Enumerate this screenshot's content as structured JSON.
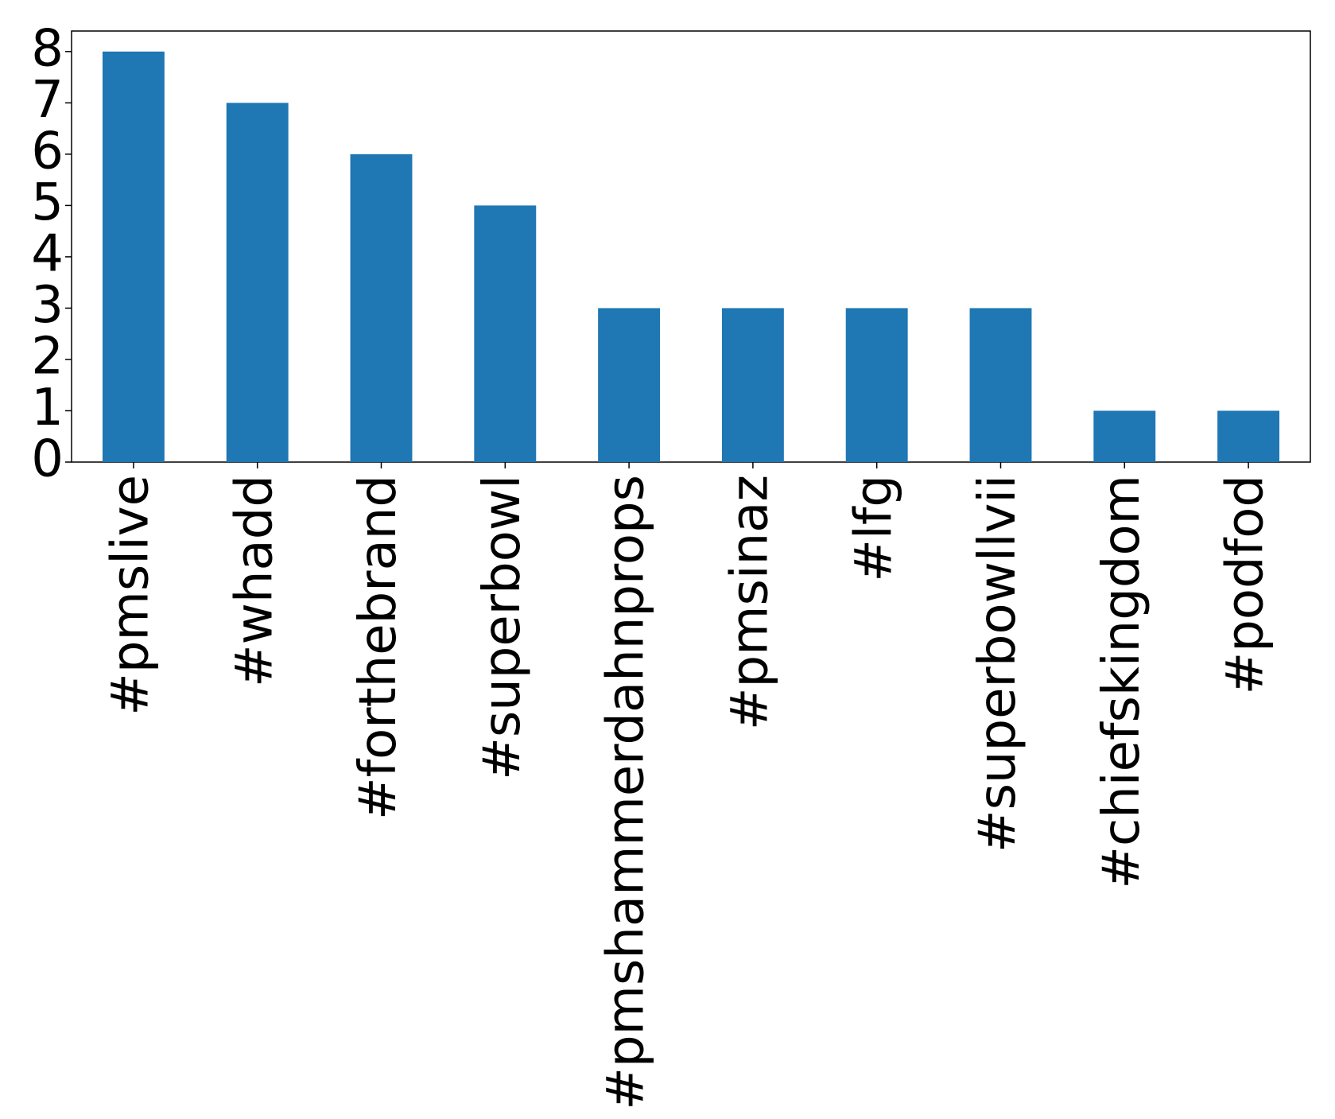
{
  "chart_data": {
    "type": "bar",
    "categories": [
      "#pmslive",
      "#whadd",
      "#forthebrand",
      "#superbowl",
      "#pmshammerdahnprops",
      "#pmsinaz",
      "#lfg",
      "#superbowllvii",
      "#chiefskingdom",
      "#podfod"
    ],
    "values": [
      8,
      7,
      6,
      5,
      3,
      3,
      3,
      3,
      1,
      1
    ],
    "color": "#1f77b4",
    "ylim": [
      0,
      8.4
    ],
    "yticks": [
      0,
      1,
      2,
      3,
      4,
      5,
      6,
      7,
      8
    ],
    "grid": false
  }
}
